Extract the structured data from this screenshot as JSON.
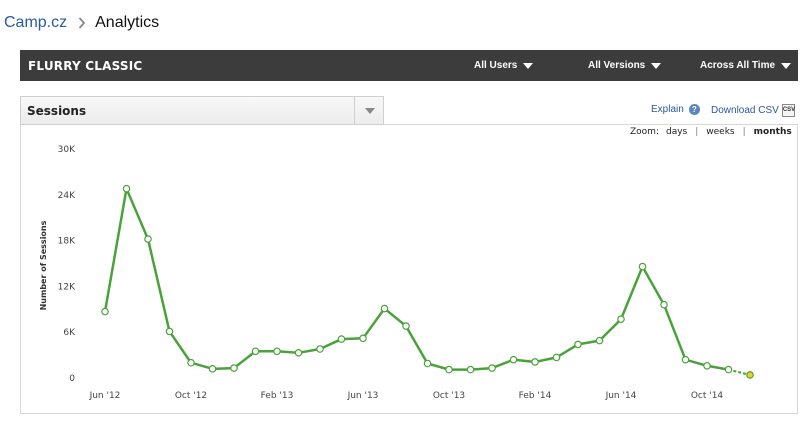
{
  "breadcrumb": {
    "app": "Camp.cz",
    "current": "Analytics"
  },
  "topbar": {
    "title": "FLURRY CLASSIC",
    "filters": {
      "users": "All Users",
      "versions": "All Versions",
      "time": "Across All Time"
    }
  },
  "metric": {
    "selected": "Sessions"
  },
  "links": {
    "explain": "Explain",
    "download": "Download CSV",
    "csv_icon": "CSV"
  },
  "zoom": {
    "label": "Zoom:",
    "days": "days",
    "weeks": "weeks",
    "months": "months",
    "active": "months"
  },
  "colors": {
    "line": "#4aa23a",
    "marker_fill": "#ffffff",
    "last_marker": "#f0d020",
    "topbar": "#3c3c3c"
  },
  "chart_data": {
    "type": "line",
    "ylabel": "Number of Sessions",
    "yticks": [
      0,
      6000,
      12000,
      18000,
      24000,
      30000
    ],
    "ytick_labels": [
      "0",
      "6K",
      "12K",
      "18K",
      "24K",
      "30K"
    ],
    "ylim": [
      0,
      30000
    ],
    "xtick_labels": [
      "Jun '12",
      "Oct '12",
      "Feb '13",
      "Jun '13",
      "Oct '13",
      "Feb '14",
      "Jun '14",
      "Oct '14"
    ],
    "x": [
      "2012-06",
      "2012-07",
      "2012-08",
      "2012-09",
      "2012-10",
      "2012-11",
      "2012-12",
      "2013-01",
      "2013-02",
      "2013-03",
      "2013-04",
      "2013-05",
      "2013-06",
      "2013-07",
      "2013-08",
      "2013-09",
      "2013-10",
      "2013-11",
      "2013-12",
      "2014-01",
      "2014-02",
      "2014-03",
      "2014-04",
      "2014-05",
      "2014-06",
      "2014-07",
      "2014-08",
      "2014-09",
      "2014-10",
      "2014-11",
      "2014-12"
    ],
    "series": [
      {
        "values": [
          8700,
          24800,
          18200,
          6100,
          2000,
          1200,
          1300,
          3500,
          3500,
          3300,
          3800,
          5100,
          5200,
          9100,
          6800,
          1900,
          1100,
          1100,
          1300,
          2400,
          2100,
          2700,
          4400,
          4900,
          7700,
          14600,
          9600,
          2400,
          1600,
          1100,
          400
        ]
      }
    ],
    "grid": false
  }
}
